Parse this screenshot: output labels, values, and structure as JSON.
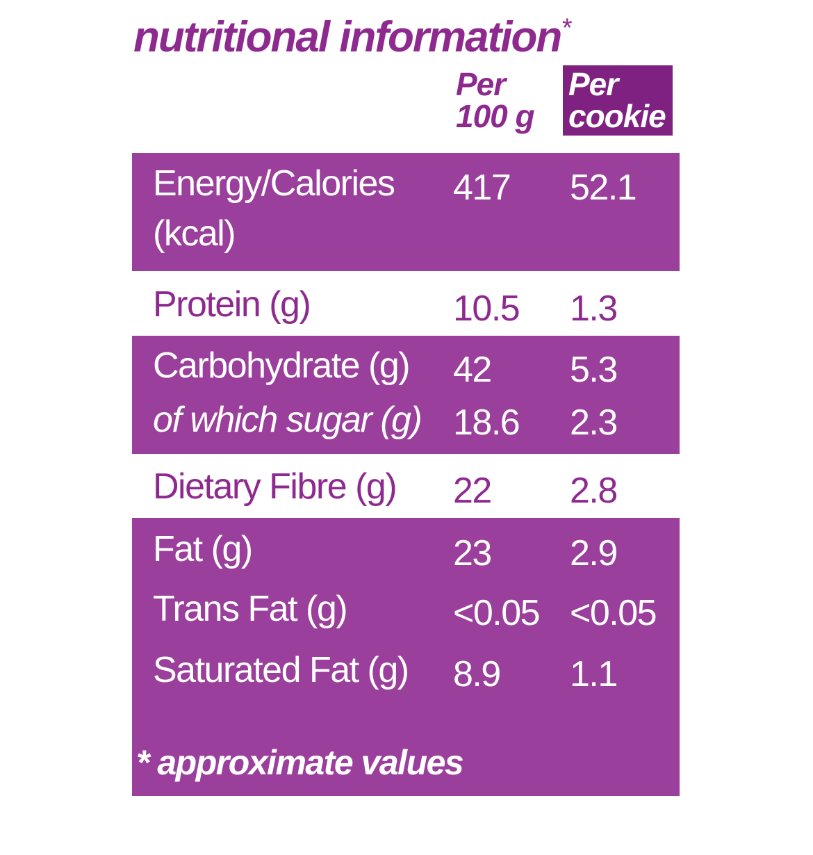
{
  "title": "nutritional information",
  "title_mark": "*",
  "columns": {
    "per_100g": [
      "Per",
      "100 g"
    ],
    "per_cookie": [
      "Per",
      "cookie"
    ]
  },
  "rows": [
    {
      "label": [
        "Energy/Calories",
        "(kcal)"
      ],
      "per_100g": "417",
      "per_cookie": "52.1"
    },
    {
      "label": "Protein (g)",
      "per_100g": "10.5",
      "per_cookie": "1.3"
    },
    {
      "label": "Carbohydrate (g)",
      "per_100g": "42",
      "per_cookie": "5.3"
    },
    {
      "label": "of which sugar (g)",
      "per_100g": "18.6",
      "per_cookie": "2.3"
    },
    {
      "label": "Dietary Fibre (g)",
      "per_100g": "22",
      "per_cookie": "2.8"
    },
    {
      "label": "Fat (g)",
      "per_100g": "23",
      "per_cookie": "2.9"
    },
    {
      "label": "Trans Fat (g)",
      "per_100g": "<0.05",
      "per_cookie": "<0.05"
    },
    {
      "label": "Saturated Fat (g)",
      "per_100g": "8.9",
      "per_cookie": "1.1"
    }
  ],
  "footnote": "* approximate values",
  "colors": {
    "accent": "#8e2a8f",
    "band": "#9b3f9c",
    "header_box": "#7e2180"
  }
}
